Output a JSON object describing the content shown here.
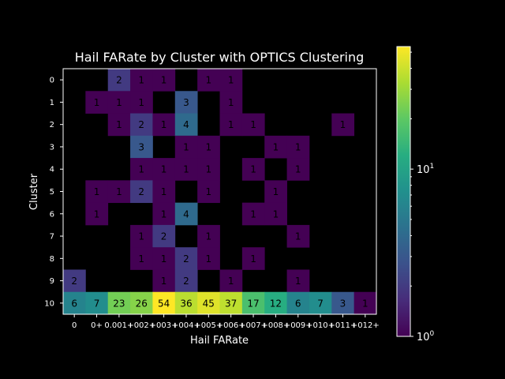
{
  "chart_data": {
    "type": "heatmap",
    "title": "Hail FARate by Cluster with OPTICS Clustering",
    "xlabel": "Hail FARate",
    "ylabel": "Cluster",
    "x_tick_labels": [
      "0",
      "0+",
      "0.001+",
      "+002+",
      "+003+",
      "+004+",
      "+005+",
      "+006+",
      "+007+",
      "+008+",
      "+009+",
      "+010+",
      "+011+",
      "+012+"
    ],
    "y_tick_labels": [
      "0",
      "1",
      "2",
      "3",
      "4",
      "5",
      "6",
      "7",
      "8",
      "9",
      "10"
    ],
    "values": [
      [
        null,
        null,
        2,
        1,
        1,
        null,
        1,
        1,
        null,
        null,
        null,
        null,
        null,
        null
      ],
      [
        null,
        1,
        1,
        1,
        null,
        3,
        null,
        1,
        null,
        null,
        null,
        null,
        null,
        null
      ],
      [
        null,
        null,
        1,
        2,
        1,
        4,
        null,
        1,
        1,
        null,
        null,
        null,
        1,
        null
      ],
      [
        null,
        null,
        null,
        3,
        null,
        1,
        1,
        null,
        null,
        1,
        1,
        null,
        null,
        null
      ],
      [
        null,
        null,
        null,
        1,
        1,
        1,
        1,
        null,
        1,
        null,
        1,
        null,
        null,
        null
      ],
      [
        null,
        1,
        1,
        2,
        1,
        null,
        1,
        null,
        null,
        1,
        null,
        null,
        null,
        null
      ],
      [
        null,
        1,
        null,
        null,
        1,
        4,
        null,
        null,
        1,
        1,
        null,
        null,
        null,
        null
      ],
      [
        null,
        null,
        null,
        1,
        2,
        null,
        1,
        null,
        null,
        null,
        1,
        null,
        null,
        null
      ],
      [
        null,
        null,
        null,
        1,
        1,
        2,
        1,
        null,
        1,
        null,
        null,
        null,
        null,
        null
      ],
      [
        2,
        null,
        null,
        null,
        1,
        2,
        null,
        1,
        null,
        null,
        1,
        null,
        null,
        null
      ],
      [
        6,
        7,
        23,
        26,
        54,
        36,
        45,
        37,
        17,
        12,
        6,
        7,
        3,
        1
      ]
    ],
    "colorscale": "viridis",
    "color_scale_type": "log",
    "color_range": [
      1,
      54
    ],
    "colorbar_ticks": [
      {
        "value": 1,
        "base": "10",
        "exp": "0"
      },
      {
        "value": 10,
        "base": "10",
        "exp": "1"
      }
    ],
    "background": "#000000",
    "text_color": "#ffffff",
    "grid": false
  }
}
